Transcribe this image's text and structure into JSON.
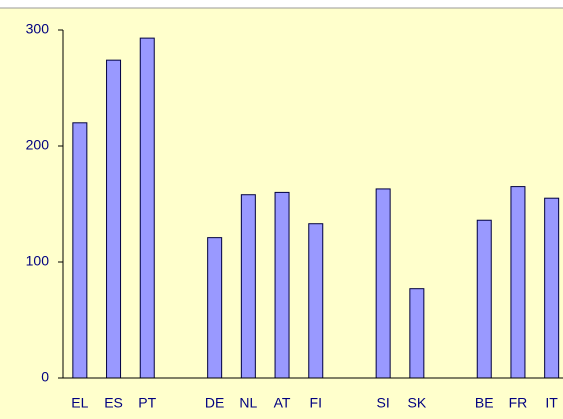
{
  "chart_data": {
    "type": "bar",
    "categories": [
      "EL",
      "ES",
      "PT",
      null,
      "DE",
      "NL",
      "AT",
      "FI",
      null,
      "SI",
      "SK",
      null,
      "BE",
      "FR",
      "IT"
    ],
    "values": [
      220,
      274,
      293,
      null,
      121,
      158,
      160,
      133,
      null,
      163,
      77,
      null,
      136,
      165,
      155
    ],
    "color": "#9999ff",
    "ylim": [
      0,
      300
    ],
    "yticks": [
      0,
      100,
      200,
      300
    ],
    "grid": false
  }
}
